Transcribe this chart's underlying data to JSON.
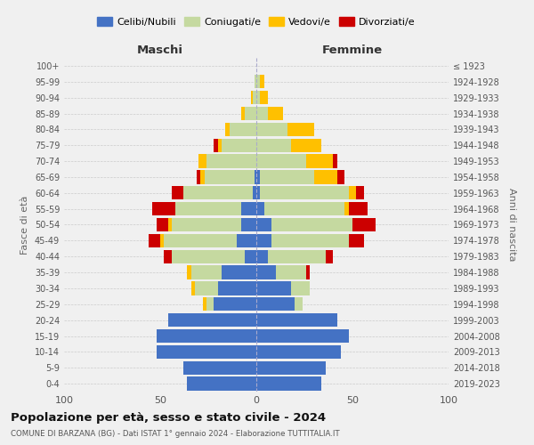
{
  "age_groups": [
    "0-4",
    "5-9",
    "10-14",
    "15-19",
    "20-24",
    "25-29",
    "30-34",
    "35-39",
    "40-44",
    "45-49",
    "50-54",
    "55-59",
    "60-64",
    "65-69",
    "70-74",
    "75-79",
    "80-84",
    "85-89",
    "90-94",
    "95-99",
    "100+"
  ],
  "birth_years": [
    "2019-2023",
    "2014-2018",
    "2009-2013",
    "2004-2008",
    "1999-2003",
    "1994-1998",
    "1989-1993",
    "1984-1988",
    "1979-1983",
    "1974-1978",
    "1969-1973",
    "1964-1968",
    "1959-1963",
    "1954-1958",
    "1949-1953",
    "1944-1948",
    "1939-1943",
    "1934-1938",
    "1929-1933",
    "1924-1928",
    "≤ 1923"
  ],
  "males": {
    "celibi": [
      36,
      38,
      52,
      52,
      46,
      22,
      20,
      18,
      6,
      10,
      8,
      8,
      2,
      1,
      0,
      0,
      0,
      0,
      0,
      0,
      0
    ],
    "coniugati": [
      0,
      0,
      0,
      0,
      0,
      4,
      12,
      16,
      38,
      38,
      36,
      34,
      36,
      26,
      26,
      18,
      14,
      6,
      2,
      1,
      0
    ],
    "vedovi": [
      0,
      0,
      0,
      0,
      0,
      2,
      2,
      2,
      0,
      2,
      2,
      0,
      0,
      2,
      4,
      2,
      2,
      2,
      1,
      0,
      0
    ],
    "divorziati": [
      0,
      0,
      0,
      0,
      0,
      0,
      0,
      0,
      4,
      6,
      6,
      12,
      6,
      2,
      0,
      2,
      0,
      0,
      0,
      0,
      0
    ]
  },
  "females": {
    "nubili": [
      34,
      36,
      44,
      48,
      42,
      20,
      18,
      10,
      6,
      8,
      8,
      4,
      2,
      2,
      0,
      0,
      0,
      0,
      0,
      0,
      0
    ],
    "coniugate": [
      0,
      0,
      0,
      0,
      0,
      4,
      10,
      16,
      30,
      40,
      42,
      42,
      46,
      28,
      26,
      18,
      16,
      6,
      2,
      2,
      0
    ],
    "vedove": [
      0,
      0,
      0,
      0,
      0,
      0,
      0,
      0,
      0,
      0,
      0,
      2,
      4,
      12,
      14,
      16,
      14,
      8,
      4,
      2,
      0
    ],
    "divorziate": [
      0,
      0,
      0,
      0,
      0,
      0,
      0,
      2,
      4,
      8,
      12,
      10,
      4,
      4,
      2,
      0,
      0,
      0,
      0,
      0,
      0
    ]
  },
  "color_celibi": "#4472c4",
  "color_coniugati": "#c5d9a0",
  "color_vedovi": "#ffc000",
  "color_divorziati": "#cc0000",
  "title": "Popolazione per età, sesso e stato civile - 2024",
  "subtitle": "COMUNE DI BARZANA (BG) - Dati ISTAT 1° gennaio 2024 - Elaborazione TUTTITALIA.IT",
  "xlabel_maschi": "Maschi",
  "xlabel_femmine": "Femmine",
  "ylabel_left": "Fasce di età",
  "ylabel_right": "Anni di nascita",
  "xlim": 100,
  "bg_color": "#f0f0f0",
  "plot_bg": "#f0f0f0"
}
